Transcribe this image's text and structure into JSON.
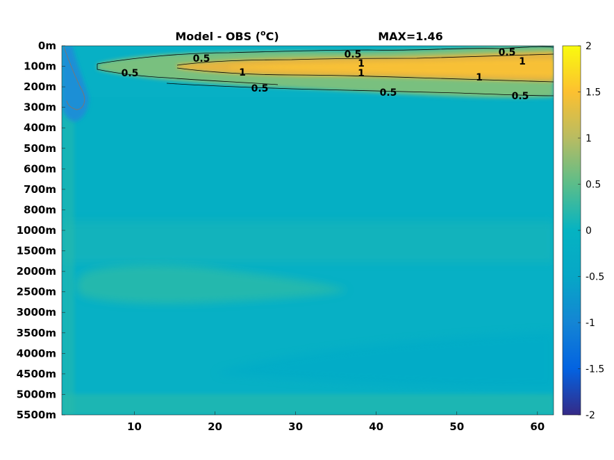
{
  "chart_data": {
    "type": "heatmap",
    "title": "Model - OBS (°C)",
    "title_parts": {
      "before": "Model - OBS (",
      "superscript": "o",
      "after": "C)"
    },
    "annotation": "MAX=1.46",
    "xlabel": "",
    "ylabel": "",
    "x_ticks": [
      "10",
      "20",
      "30",
      "40",
      "50",
      "60"
    ],
    "x_tick_values": [
      10,
      20,
      30,
      40,
      50,
      60
    ],
    "xlim": [
      1,
      62
    ],
    "y_ticks": [
      "0m",
      "100m",
      "200m",
      "300m",
      "400m",
      "500m",
      "600m",
      "700m",
      "800m",
      "1000m",
      "1500m",
      "2000m",
      "2500m",
      "3000m",
      "3500m",
      "4000m",
      "4500m",
      "5000m",
      "5500m"
    ],
    "y_axis": "reversed, one row per listed depth level",
    "colormap": "parula",
    "colorbar": {
      "ticks": [
        "2",
        "1.5",
        "1",
        "0.5",
        "0",
        "-0.5",
        "-1",
        "-1.5",
        "-2"
      ],
      "tick_values": [
        2,
        1.5,
        1,
        0.5,
        0,
        -0.5,
        -1,
        -1.5,
        -2
      ],
      "clim": [
        -2,
        2
      ]
    },
    "contour_levels": [
      0.5,
      1
    ],
    "contour_labels": [
      {
        "text": "0.5",
        "x": 18,
        "depth": "~50m"
      },
      {
        "text": "0.5",
        "x": 9,
        "depth": "~100m"
      },
      {
        "text": "1",
        "x": 24,
        "depth": "~100m"
      },
      {
        "text": "0.5",
        "x": 37,
        "depth": "~30m"
      },
      {
        "text": "1",
        "x": 39,
        "depth": "~80m"
      },
      {
        "text": "1",
        "x": 39,
        "depth": "~110m"
      },
      {
        "text": "0.5",
        "x": 57,
        "depth": "~20m"
      },
      {
        "text": "1",
        "x": 59,
        "depth": "~60m"
      },
      {
        "text": "1",
        "x": 53,
        "depth": "~140m"
      },
      {
        "text": "0.5",
        "x": 26,
        "depth": "~200m"
      },
      {
        "text": "0.5",
        "x": 42,
        "depth": "~230m"
      },
      {
        "text": "0.5",
        "x": 58,
        "depth": "~240m"
      }
    ],
    "features": [
      {
        "description": "warm band between ~50m and ~250m, peak ~1.46 at 100-200m for x > 10",
        "value_range": [
          0.5,
          1.46
        ]
      },
      {
        "description": "cool patch near x = 1-3, depth 0-300m",
        "value_range": [
          -0.8,
          -0.4
        ]
      },
      {
        "description": "slightly warm band around 2000-2500m",
        "value_range": [
          0.1,
          0.25
        ]
      },
      {
        "description": "bulk of domain",
        "value_range": [
          -0.15,
          0.1
        ]
      }
    ]
  },
  "colors": {
    "parula_stops": [
      "#352a87",
      "#0363e1",
      "#1485d4",
      "#06a7c6",
      "#38b99e",
      "#92bf73",
      "#d9ba56",
      "#fcce2e",
      "#f9fb0e"
    ],
    "contour_line": "#000000",
    "negative_contour": "#666666"
  }
}
